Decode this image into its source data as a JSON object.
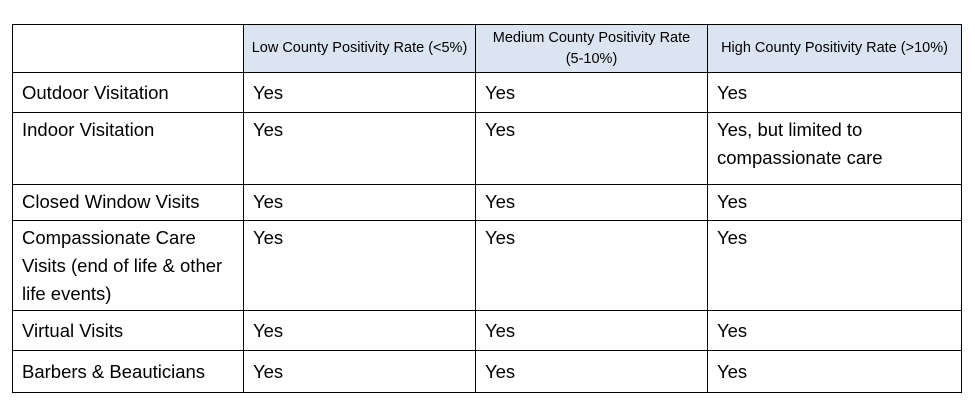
{
  "table": {
    "headers": [
      "",
      "Low County Positivity Rate (<5%)",
      "Medium County Positivity Rate (5-10%)",
      "High County Positivity Rate (>10%)"
    ],
    "rows": [
      {
        "label": "Outdoor Visitation",
        "low": "Yes",
        "medium": "Yes",
        "high": "Yes"
      },
      {
        "label": "Indoor Visitation",
        "low": "Yes",
        "medium": "Yes",
        "high": "Yes, but limited to compassionate care"
      },
      {
        "label": "Closed Window Visits",
        "low": "Yes",
        "medium": "Yes",
        "high": "Yes"
      },
      {
        "label": "Compassionate Care Visits (end of life & other life events)",
        "low": "Yes",
        "medium": "Yes",
        "high": "Yes"
      },
      {
        "label": "Virtual Visits",
        "low": "Yes",
        "medium": "Yes",
        "high": "Yes"
      },
      {
        "label": "Barbers & Beauticians",
        "low": "Yes",
        "medium": "Yes",
        "high": "Yes"
      }
    ]
  }
}
